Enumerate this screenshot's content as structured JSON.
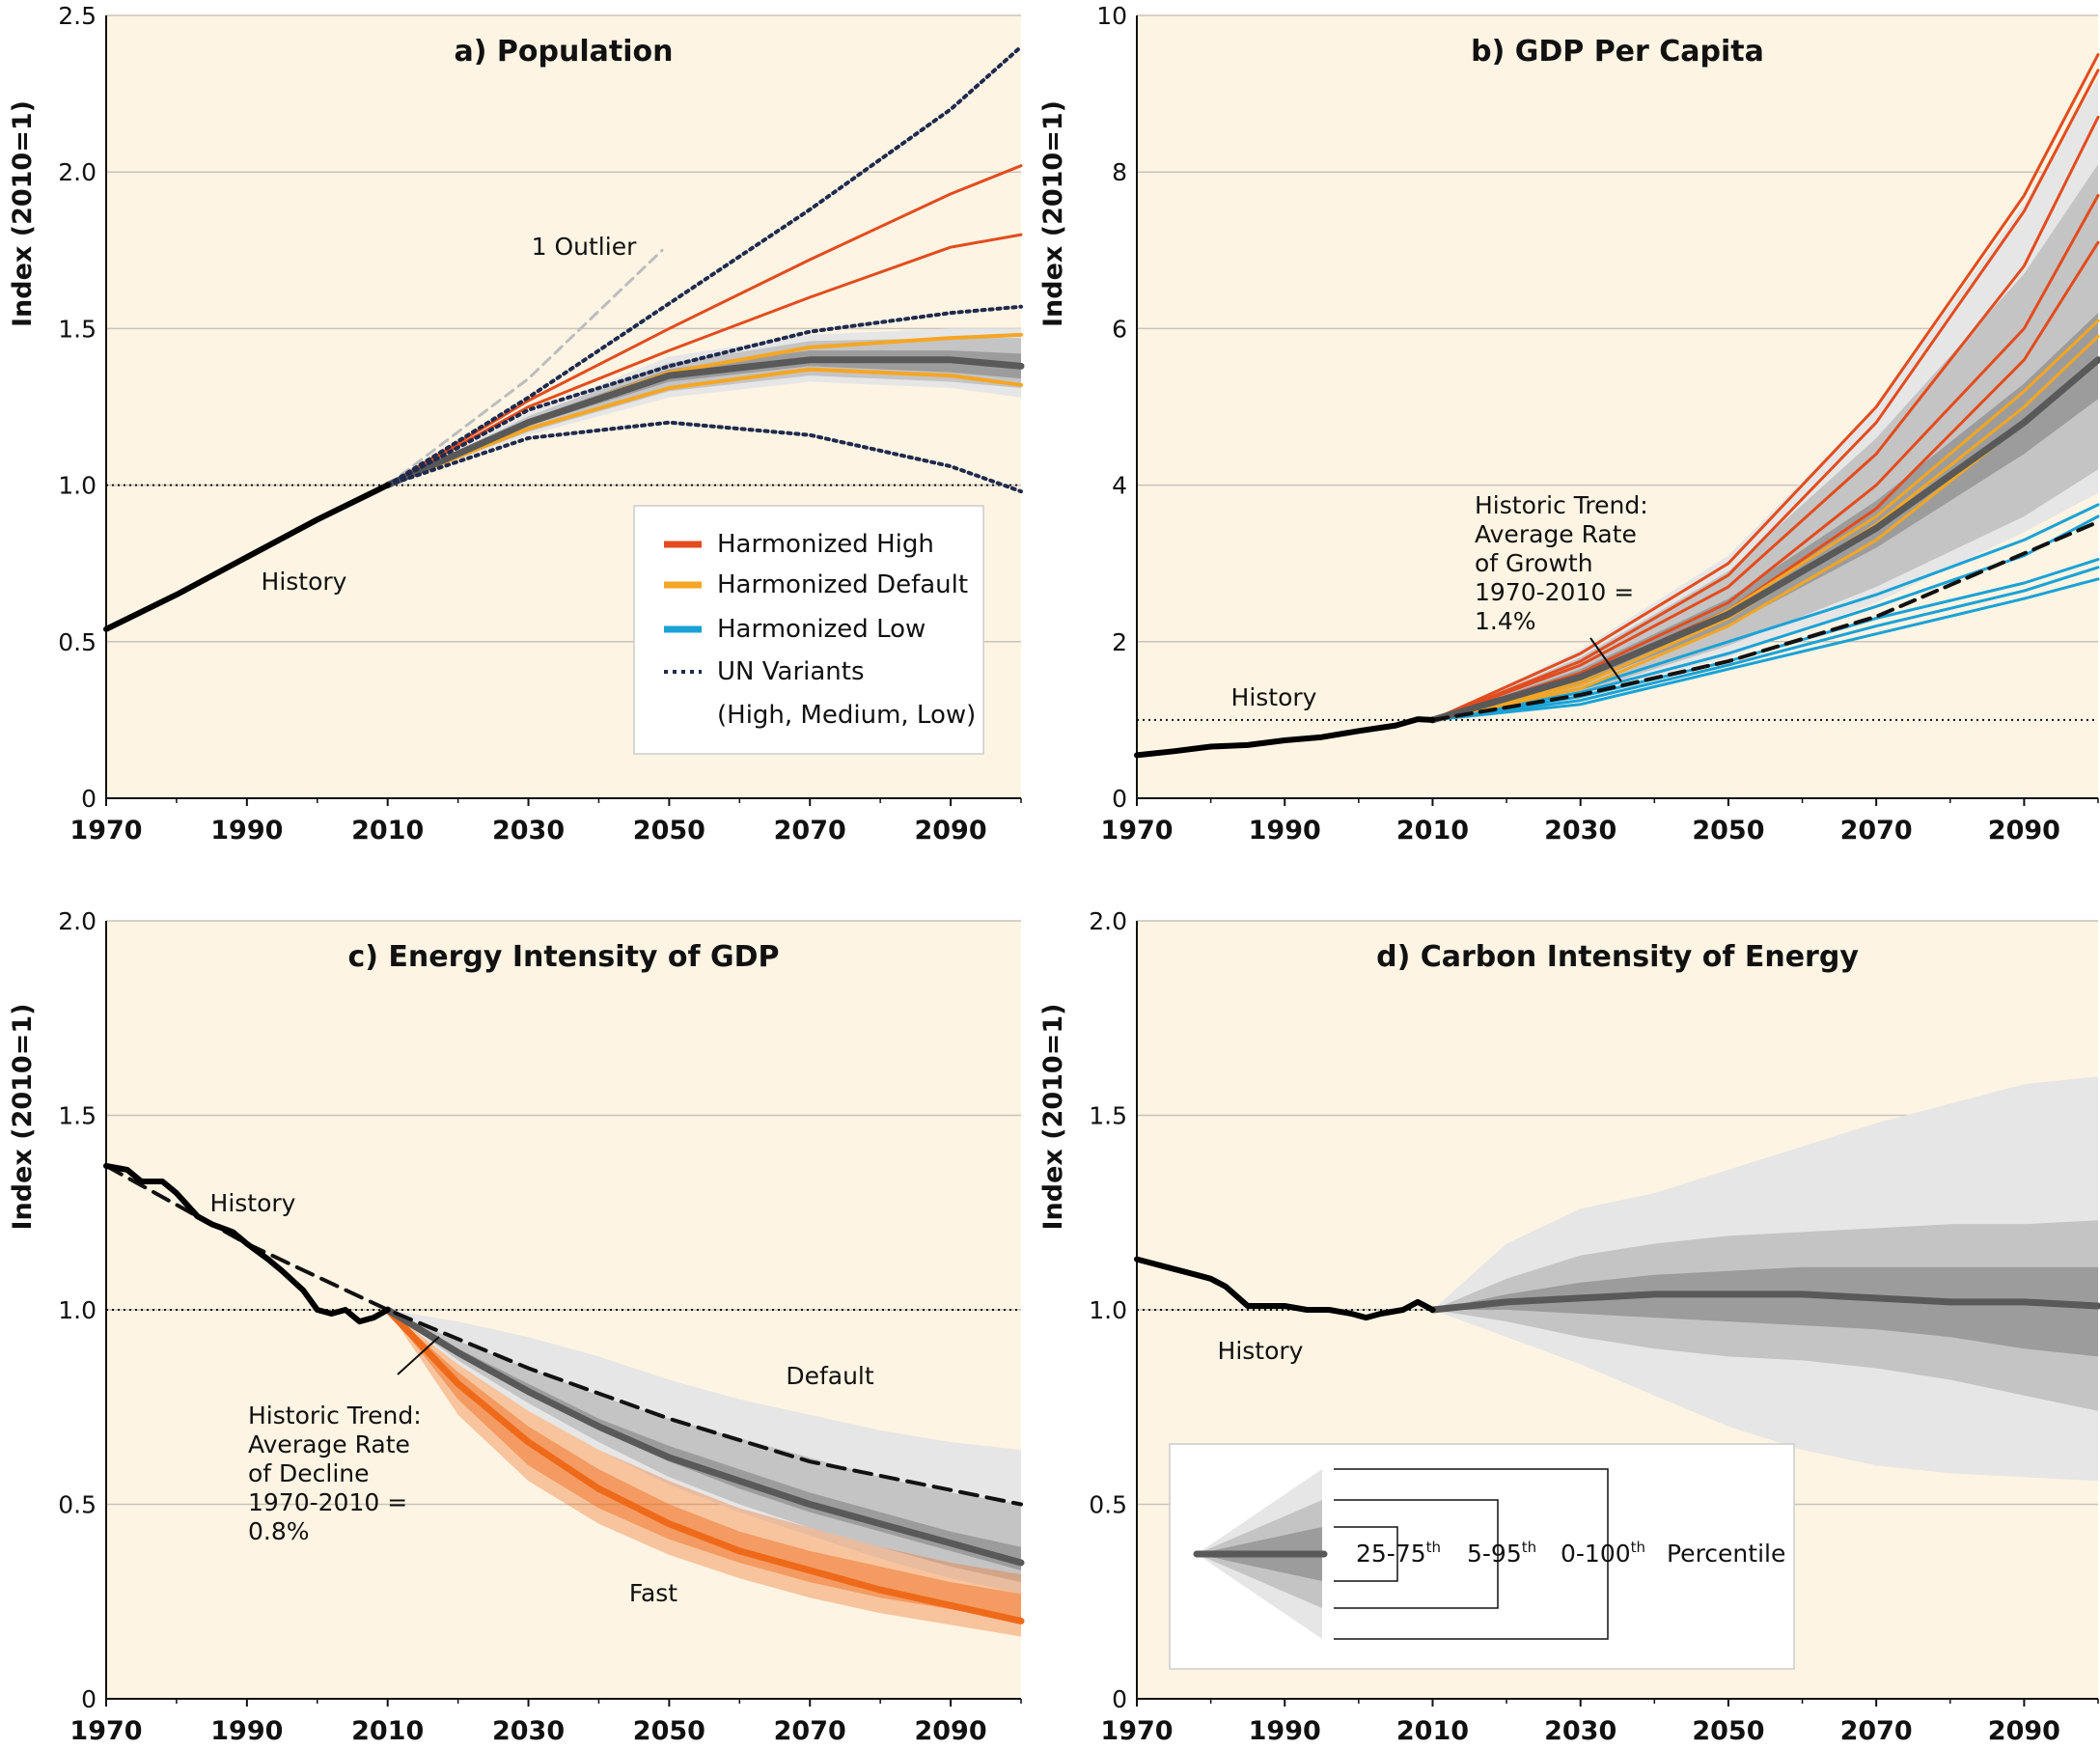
{
  "figure": {
    "colors": {
      "background": "#fdf4e3",
      "history": "#000000",
      "harmonized_high": "#e24c1e",
      "harmonized_default": "#f5a623",
      "harmonized_low": "#1aa2d6",
      "un_variants": "#1f2a4d",
      "median": "#595959",
      "band_0_100": "#e6e6e6",
      "band_5_95": "#c4c4c4",
      "band_25_75": "#9c9c9c",
      "fast": "#ee6a1a"
    },
    "x_ticks": [
      "1970",
      "1990",
      "2010",
      "2030",
      "2050",
      "2070",
      "2090"
    ],
    "legend_a": {
      "high": "Harmonized High",
      "default": "Harmonized Default",
      "low": "Harmonized Low",
      "un_line1": "UN Variants",
      "un_line2": "(High, Medium, Low)"
    },
    "legend_d": {
      "p25_75": "25-75",
      "p5_95": "5-95",
      "p0_100": "0-100",
      "sup": "th",
      "label": "Percentile"
    }
  },
  "chart_data": [
    {
      "type": "line",
      "title": "a) Population",
      "ylabel": "Index (2010=1)",
      "xlim": [
        1970,
        2100
      ],
      "ylim": [
        0,
        2.5
      ],
      "yticks": [
        "0",
        "0.5",
        "1.0",
        "1.5",
        "2.0",
        "2.5"
      ],
      "reference_line": 1.0,
      "annotations": {
        "history": "History",
        "outlier": "1 Outlier"
      },
      "history": {
        "x": [
          1970,
          1980,
          1990,
          2000,
          2010
        ],
        "y": [
          0.54,
          0.65,
          0.77,
          0.89,
          1.0
        ]
      },
      "outlier": {
        "x": [
          2010,
          2030,
          2049
        ],
        "y": [
          1.0,
          1.34,
          1.75
        ]
      },
      "un_variants": [
        {
          "x": [
            2010,
            2030,
            2050,
            2070,
            2090,
            2100
          ],
          "y": [
            1.0,
            1.28,
            1.58,
            1.88,
            2.2,
            2.4
          ]
        },
        {
          "x": [
            2010,
            2030,
            2050,
            2070,
            2090,
            2100
          ],
          "y": [
            1.0,
            1.24,
            1.38,
            1.49,
            1.55,
            1.57
          ]
        },
        {
          "x": [
            2010,
            2030,
            2050,
            2070,
            2090,
            2100
          ],
          "y": [
            1.0,
            1.15,
            1.2,
            1.16,
            1.06,
            0.98
          ]
        }
      ],
      "harmonized_high": [
        {
          "x": [
            2010,
            2030,
            2050,
            2070,
            2090,
            2100
          ],
          "y": [
            1.0,
            1.27,
            1.5,
            1.72,
            1.93,
            2.02
          ]
        },
        {
          "x": [
            2010,
            2030,
            2050,
            2070,
            2090,
            2100
          ],
          "y": [
            1.0,
            1.25,
            1.43,
            1.6,
            1.76,
            1.8
          ]
        }
      ],
      "harmonized_default": [
        {
          "x": [
            2010,
            2030,
            2050,
            2070,
            2090,
            2100
          ],
          "y": [
            1.0,
            1.2,
            1.36,
            1.44,
            1.47,
            1.48
          ]
        },
        {
          "x": [
            2010,
            2030,
            2050,
            2070,
            2090,
            2100
          ],
          "y": [
            1.0,
            1.18,
            1.31,
            1.37,
            1.35,
            1.32
          ]
        }
      ],
      "percentiles": {
        "x": [
          2010,
          2030,
          2050,
          2070,
          2090,
          2100
        ],
        "p0": [
          1.0,
          1.16,
          1.28,
          1.33,
          1.31,
          1.28
        ],
        "p5": [
          1.0,
          1.17,
          1.3,
          1.35,
          1.33,
          1.31
        ],
        "p25": [
          1.0,
          1.19,
          1.33,
          1.38,
          1.36,
          1.34
        ],
        "p50": [
          1.0,
          1.2,
          1.35,
          1.4,
          1.4,
          1.38
        ],
        "p75": [
          1.0,
          1.21,
          1.37,
          1.43,
          1.43,
          1.42
        ],
        "p95": [
          1.0,
          1.22,
          1.39,
          1.46,
          1.47,
          1.47
        ],
        "p100": [
          1.0,
          1.23,
          1.41,
          1.48,
          1.5,
          1.5
        ]
      }
    },
    {
      "type": "line",
      "title": "b) GDP Per Capita",
      "ylabel": "Index (2010=1)",
      "xlim": [
        1970,
        2100
      ],
      "ylim": [
        0,
        10
      ],
      "yticks": [
        "0",
        "2",
        "4",
        "6",
        "8",
        "10"
      ],
      "reference_line": 1.0,
      "annotations": {
        "history": "History",
        "trend": [
          "Historic Trend:",
          "Average Rate",
          "of Growth",
          "1970-2010 =",
          "1.4%"
        ]
      },
      "history": {
        "x": [
          1970,
          1975,
          1980,
          1985,
          1990,
          1995,
          2000,
          2005,
          2008,
          2010
        ],
        "y": [
          0.55,
          0.6,
          0.66,
          0.68,
          0.74,
          0.78,
          0.86,
          0.93,
          1.01,
          1.0
        ]
      },
      "trend": {
        "x": [
          2010,
          2030,
          2050,
          2070,
          2100
        ],
        "y": [
          1.0,
          1.32,
          1.75,
          2.32,
          3.53
        ]
      },
      "harmonized_high": [
        {
          "x": [
            2010,
            2030,
            2050,
            2070,
            2090,
            2100
          ],
          "y": [
            1.0,
            1.85,
            3.0,
            5.0,
            7.7,
            9.5
          ]
        },
        {
          "x": [
            2010,
            2030,
            2050,
            2070,
            2090,
            2100
          ],
          "y": [
            1.0,
            1.75,
            2.85,
            4.8,
            7.5,
            9.3
          ]
        },
        {
          "x": [
            2010,
            2030,
            2050,
            2070,
            2090,
            2100
          ],
          "y": [
            1.0,
            1.7,
            2.7,
            4.4,
            6.8,
            8.7
          ]
        },
        {
          "x": [
            2010,
            2030,
            2050,
            2070,
            2090,
            2100
          ],
          "y": [
            1.0,
            1.6,
            2.5,
            4.0,
            6.0,
            7.7
          ]
        },
        {
          "x": [
            2010,
            2030,
            2050,
            2070,
            2090,
            2100
          ],
          "y": [
            1.0,
            1.55,
            2.4,
            3.7,
            5.6,
            7.1
          ]
        }
      ],
      "harmonized_default": [
        {
          "x": [
            2010,
            2030,
            2050,
            2070,
            2090,
            2100
          ],
          "y": [
            1.0,
            1.5,
            2.4,
            3.6,
            5.2,
            6.1
          ]
        },
        {
          "x": [
            2010,
            2030,
            2050,
            2070,
            2090,
            2100
          ],
          "y": [
            1.0,
            1.45,
            2.3,
            3.5,
            5.0,
            5.9
          ]
        },
        {
          "x": [
            2010,
            2030,
            2050,
            2070,
            2090,
            2100
          ],
          "y": [
            1.0,
            1.4,
            2.2,
            3.3,
            4.8,
            5.6
          ]
        }
      ],
      "harmonized_low": [
        {
          "x": [
            2010,
            2030,
            2050,
            2070,
            2090,
            2100
          ],
          "y": [
            1.0,
            1.4,
            2.0,
            2.6,
            3.3,
            3.75
          ]
        },
        {
          "x": [
            2010,
            2030,
            2050,
            2070,
            2090,
            2100
          ],
          "y": [
            1.0,
            1.35,
            1.85,
            2.45,
            3.1,
            3.6
          ]
        },
        {
          "x": [
            2010,
            2030,
            2050,
            2070,
            2090,
            2100
          ],
          "y": [
            1.0,
            1.3,
            1.75,
            2.3,
            2.75,
            3.05
          ]
        },
        {
          "x": [
            2010,
            2030,
            2050,
            2070,
            2090,
            2100
          ],
          "y": [
            1.0,
            1.25,
            1.7,
            2.2,
            2.65,
            2.95
          ]
        },
        {
          "x": [
            2010,
            2030,
            2050,
            2070,
            2090,
            2100
          ],
          "y": [
            1.0,
            1.2,
            1.65,
            2.1,
            2.55,
            2.8
          ]
        }
      ],
      "percentiles": {
        "x": [
          2010,
          2030,
          2050,
          2070,
          2090,
          2100
        ],
        "p0": [
          1.0,
          1.3,
          1.8,
          2.5,
          3.4,
          3.9
        ],
        "p5": [
          1.0,
          1.35,
          1.95,
          2.7,
          3.6,
          4.2
        ],
        "p25": [
          1.0,
          1.45,
          2.2,
          3.2,
          4.4,
          5.1
        ],
        "p50": [
          1.0,
          1.55,
          2.35,
          3.45,
          4.8,
          5.6
        ],
        "p75": [
          1.0,
          1.65,
          2.55,
          3.8,
          5.3,
          6.2
        ],
        "p95": [
          1.0,
          1.8,
          2.9,
          4.6,
          6.7,
          8.1
        ],
        "p100": [
          1.0,
          1.9,
          3.1,
          5.0,
          7.6,
          9.2
        ]
      }
    },
    {
      "type": "line",
      "title": "c) Energy Intensity of GDP",
      "ylabel": "Index (2010=1)",
      "xlim": [
        1970,
        2100
      ],
      "ylim": [
        0,
        2.0
      ],
      "yticks": [
        "0",
        "0.5",
        "1.0",
        "1.5",
        "2.0"
      ],
      "reference_line": 1.0,
      "annotations": {
        "history": "History",
        "default": "Default",
        "fast": "Fast",
        "trend": [
          "Historic Trend:",
          "Average Rate",
          "of Decline",
          "1970-2010 =",
          "0.8%"
        ]
      },
      "history": {
        "x": [
          1970,
          1973,
          1975,
          1978,
          1980,
          1983,
          1985,
          1988,
          1990,
          1993,
          1995,
          1998,
          2000,
          2002,
          2004,
          2006,
          2008,
          2010
        ],
        "y": [
          1.37,
          1.36,
          1.33,
          1.33,
          1.3,
          1.24,
          1.22,
          1.2,
          1.17,
          1.13,
          1.1,
          1.05,
          1.0,
          0.99,
          1.0,
          0.97,
          0.98,
          1.0
        ]
      },
      "trend": {
        "x": [
          1970,
          1990,
          2010,
          2030,
          2050,
          2070,
          2100
        ],
        "y": [
          1.37,
          1.17,
          1.0,
          0.85,
          0.72,
          0.61,
          0.5
        ]
      },
      "fast": {
        "x": [
          2010,
          2020,
          2030,
          2040,
          2050,
          2060,
          2070,
          2080,
          2090,
          2100
        ],
        "low": [
          1.0,
          0.73,
          0.56,
          0.45,
          0.37,
          0.31,
          0.26,
          0.22,
          0.19,
          0.16
        ],
        "mid_low": [
          1.0,
          0.77,
          0.6,
          0.49,
          0.41,
          0.35,
          0.3,
          0.26,
          0.23,
          0.2
        ],
        "median": [
          1.0,
          0.81,
          0.66,
          0.54,
          0.45,
          0.38,
          0.33,
          0.28,
          0.24,
          0.2
        ],
        "mid_high": [
          1.0,
          0.84,
          0.7,
          0.59,
          0.5,
          0.43,
          0.38,
          0.34,
          0.3,
          0.27
        ],
        "high": [
          1.0,
          0.86,
          0.74,
          0.64,
          0.56,
          0.49,
          0.44,
          0.39,
          0.35,
          0.32
        ]
      },
      "percentiles": {
        "x": [
          2010,
          2020,
          2030,
          2040,
          2050,
          2060,
          2070,
          2080,
          2090,
          2100
        ],
        "p0": [
          1.0,
          0.86,
          0.74,
          0.64,
          0.55,
          0.48,
          0.42,
          0.36,
          0.31,
          0.27
        ],
        "p5": [
          1.0,
          0.87,
          0.76,
          0.66,
          0.57,
          0.5,
          0.44,
          0.39,
          0.34,
          0.3
        ],
        "p25": [
          1.0,
          0.88,
          0.78,
          0.69,
          0.61,
          0.54,
          0.48,
          0.43,
          0.38,
          0.33
        ],
        "p50": [
          1.0,
          0.89,
          0.79,
          0.7,
          0.62,
          0.56,
          0.5,
          0.45,
          0.4,
          0.35
        ],
        "p75": [
          1.0,
          0.9,
          0.81,
          0.72,
          0.65,
          0.59,
          0.53,
          0.48,
          0.43,
          0.39
        ],
        "p95": [
          1.0,
          0.92,
          0.85,
          0.78,
          0.72,
          0.67,
          0.62,
          0.57,
          0.53,
          0.5
        ],
        "p100": [
          1.0,
          0.97,
          0.93,
          0.88,
          0.82,
          0.77,
          0.73,
          0.69,
          0.66,
          0.64
        ]
      }
    },
    {
      "type": "line",
      "title": "d) Carbon Intensity of Energy",
      "ylabel": "Index (2010=1)",
      "xlim": [
        1970,
        2100
      ],
      "ylim": [
        0,
        2.0
      ],
      "yticks": [
        "0",
        "0.5",
        "1.0",
        "1.5",
        "2.0"
      ],
      "reference_line": 1.0,
      "annotations": {
        "history": "History"
      },
      "history": {
        "x": [
          1970,
          1972,
          1974,
          1976,
          1978,
          1980,
          1982,
          1985,
          1988,
          1990,
          1993,
          1996,
          1999,
          2001,
          2003,
          2006,
          2008,
          2010
        ],
        "y": [
          1.13,
          1.12,
          1.11,
          1.1,
          1.09,
          1.08,
          1.06,
          1.01,
          1.01,
          1.01,
          1.0,
          1.0,
          0.99,
          0.98,
          0.99,
          1.0,
          1.02,
          1.0
        ]
      },
      "percentiles": {
        "x": [
          2010,
          2020,
          2030,
          2040,
          2050,
          2060,
          2070,
          2080,
          2090,
          2100
        ],
        "p0": [
          1.0,
          0.93,
          0.86,
          0.78,
          0.7,
          0.64,
          0.6,
          0.58,
          0.57,
          0.56
        ],
        "p5": [
          1.0,
          0.97,
          0.93,
          0.9,
          0.88,
          0.87,
          0.85,
          0.82,
          0.78,
          0.74
        ],
        "p25": [
          1.0,
          1.0,
          0.99,
          0.98,
          0.97,
          0.96,
          0.95,
          0.93,
          0.9,
          0.88
        ],
        "p50": [
          1.0,
          1.02,
          1.03,
          1.04,
          1.04,
          1.04,
          1.03,
          1.02,
          1.02,
          1.01
        ],
        "p75": [
          1.0,
          1.04,
          1.07,
          1.09,
          1.1,
          1.11,
          1.11,
          1.11,
          1.11,
          1.11
        ],
        "p95": [
          1.0,
          1.08,
          1.14,
          1.17,
          1.19,
          1.2,
          1.21,
          1.22,
          1.22,
          1.23
        ],
        "p100": [
          1.0,
          1.17,
          1.26,
          1.3,
          1.36,
          1.42,
          1.48,
          1.53,
          1.58,
          1.6
        ]
      }
    }
  ]
}
